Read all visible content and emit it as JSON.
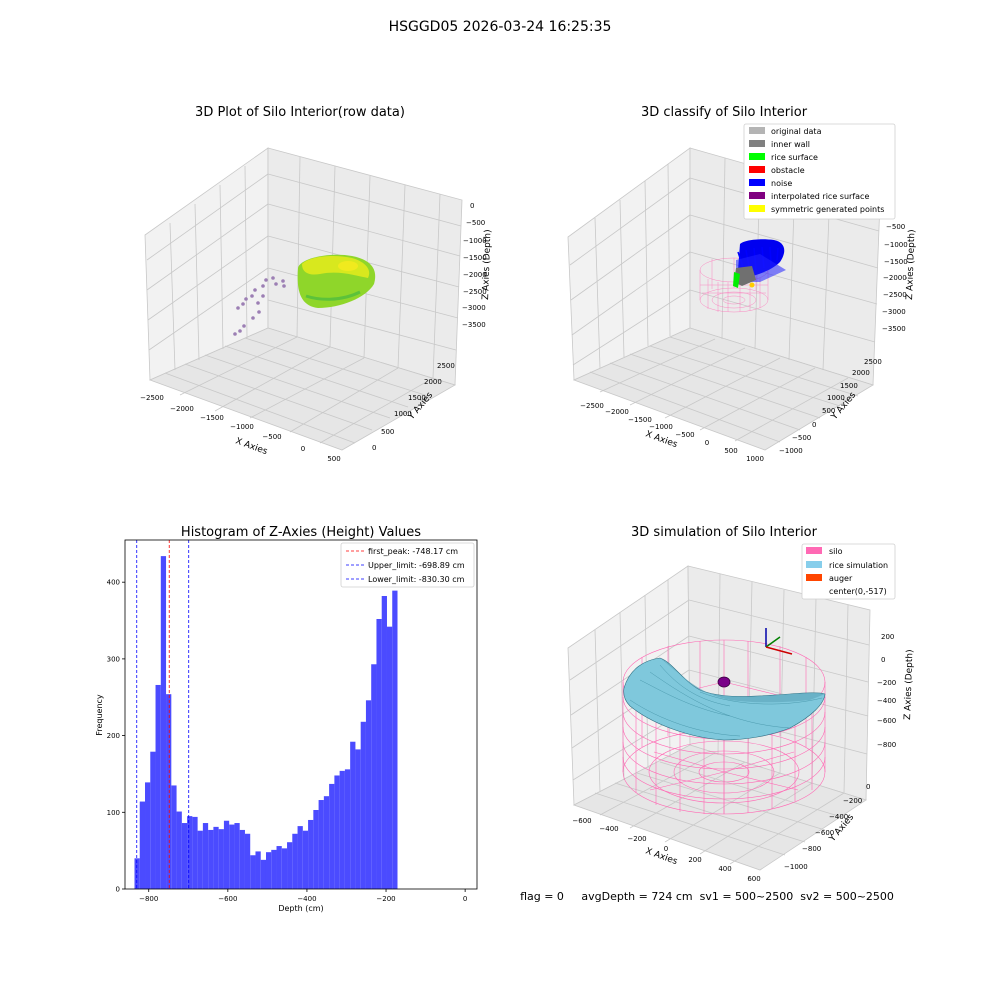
{
  "suptitle": "HSGGD05 2026-03-24 16:25:35",
  "panel1": {
    "title": "3D Plot of Silo Interior(row data)",
    "xlabel": "X Axies",
    "ylabel": "Y Axies",
    "zlabel": "Z Axies (Depth)",
    "xticks": [
      "−2500",
      "−2000",
      "−1500",
      "−1000",
      "−500",
      "0",
      "500"
    ],
    "yticks": [
      "0",
      "500",
      "1000",
      "1500",
      "2000",
      "2500"
    ],
    "zticks": [
      "0",
      "−500",
      "−1000",
      "−1500",
      "−2000",
      "−2500",
      "−3000",
      "−3500"
    ]
  },
  "panel2": {
    "title": "3D classify of Silo Interior",
    "xlabel": "X Axies",
    "ylabel": "Y Axies",
    "zlabel": "Z Axies (Depth)",
    "xticks": [
      "−2500",
      "−2000",
      "−1500",
      "−1000",
      "−500",
      "0",
      "500",
      "1000"
    ],
    "yticks": [
      "−1000",
      "−500",
      "0",
      "500",
      "1000",
      "1500",
      "2000",
      "2500"
    ],
    "zticks": [
      "0",
      "−500",
      "−1000",
      "−1500",
      "−2000",
      "−2500",
      "−3000",
      "−3500"
    ],
    "legend": [
      {
        "label": "original data",
        "color": "#b4b4b4"
      },
      {
        "label": "inner wall",
        "color": "#808080"
      },
      {
        "label": "rice surface",
        "color": "#00ff00"
      },
      {
        "label": "obstacle",
        "color": "#ff0000"
      },
      {
        "label": "noise",
        "color": "#0000ff"
      },
      {
        "label": "interpolated rice surface",
        "color": "#800080"
      },
      {
        "label": "symmetric generated points",
        "color": "#ffff00"
      }
    ]
  },
  "panel4": {
    "title": "3D simulation of Silo Interior",
    "xlabel": "X Axies",
    "ylabel": "Y Axies",
    "zlabel": "Z Axies (Depth)",
    "xticks": [
      "−600",
      "−400",
      "−200",
      "0",
      "200",
      "400",
      "600"
    ],
    "yticks": [
      "−1000",
      "−800",
      "−600",
      "−400",
      "−200",
      "0"
    ],
    "zticks": [
      "200",
      "0",
      "−200",
      "−400",
      "−600",
      "−800"
    ],
    "legend": [
      {
        "label": "silo",
        "color": "#ff69b4"
      },
      {
        "label": "rice simulation",
        "color": "#87ceeb"
      },
      {
        "label": "auger",
        "color": "#ff4500"
      },
      {
        "label": "center(0,-517)",
        "color": ""
      }
    ],
    "status": "flag = 0     avgDepth = 724 cm  sv1 = 500~2500  sv2 = 500~2500"
  },
  "chart_data": [
    {
      "type": "histogram",
      "title": "Histogram of Z-Axies (Height) Values",
      "xlabel": "Depth (cm)",
      "ylabel": "Frequency",
      "xlim": [
        -860,
        30
      ],
      "ylim": [
        0,
        455
      ],
      "xticks": [
        -800,
        -600,
        -400,
        -200,
        0
      ],
      "xtick_labels": [
        "−800",
        "−600",
        "−400",
        "−200",
        "0"
      ],
      "yticks": [
        0,
        100,
        200,
        300,
        400
      ],
      "bar_color": "#4b4bff",
      "bin_start": -836,
      "bin_width": 13.3,
      "values": [
        40,
        114,
        139,
        179,
        266,
        434,
        254,
        135,
        101,
        86,
        95,
        94,
        76,
        86,
        77,
        81,
        78,
        89,
        84,
        86,
        77,
        72,
        44,
        49,
        38,
        48,
        51,
        56,
        53,
        61,
        72,
        82,
        76,
        90,
        103,
        116,
        121,
        137,
        148,
        154,
        156,
        192,
        182,
        218,
        246,
        293,
        352,
        382,
        342,
        389
      ],
      "lines": [
        {
          "label": "first_peak: -748.17 cm",
          "x": -748.17,
          "color": "#ff0000"
        },
        {
          "label": "Upper_limit: -698.89 cm",
          "x": -698.89,
          "color": "#0000ff"
        },
        {
          "label": "Lower_limit: -830.30 cm",
          "x": -830.3,
          "color": "#0000ff"
        }
      ]
    }
  ]
}
